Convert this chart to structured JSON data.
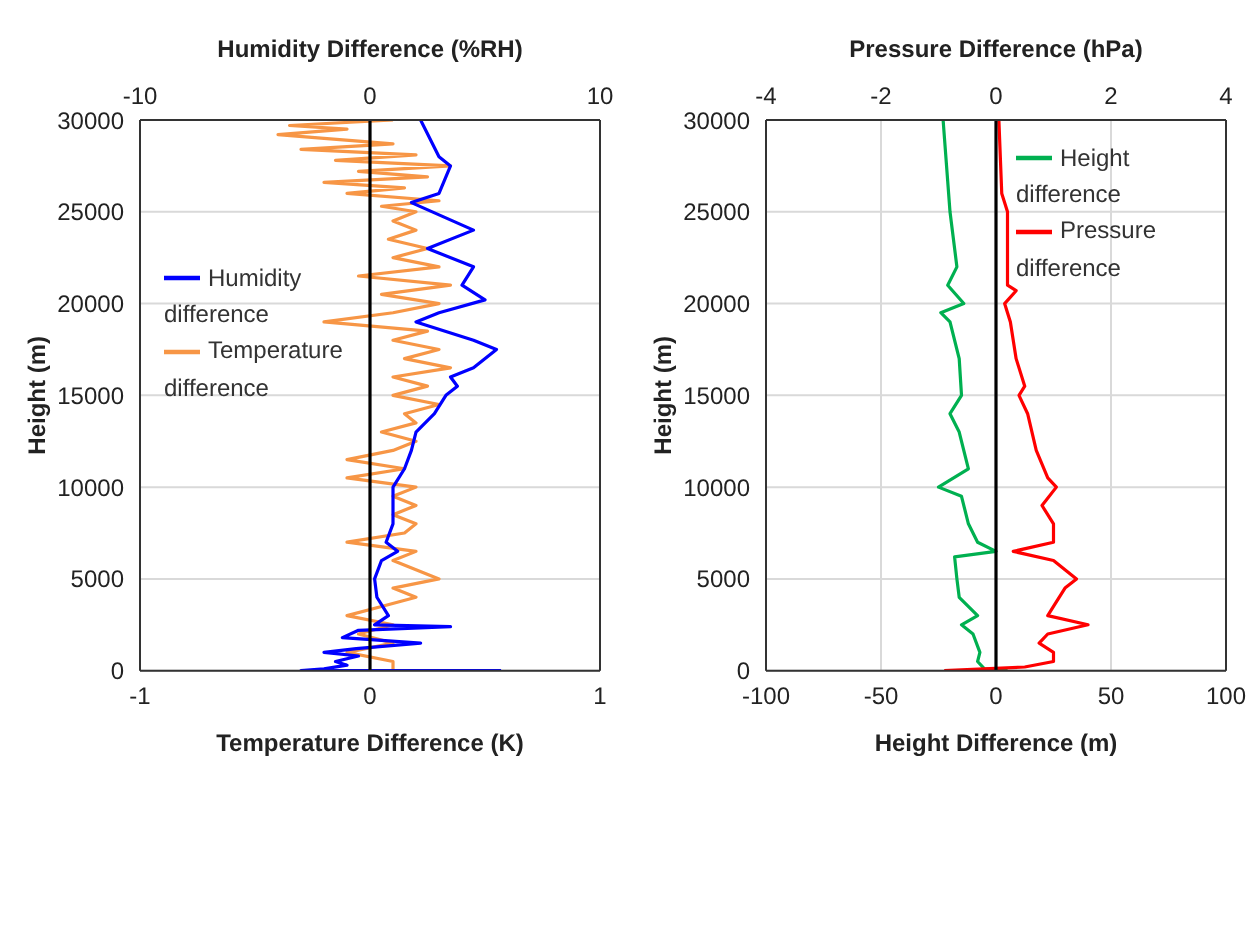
{
  "chart_data": [
    {
      "type": "line",
      "xlabel": "Temperature Difference (K)",
      "x2label": "Humidity Difference (%RH)",
      "ylabel": "Height (m)",
      "xlim": [
        -1,
        1
      ],
      "xticks": [
        -1,
        0,
        1
      ],
      "x2lim": [
        -10,
        10
      ],
      "x2ticks": [
        -10,
        0,
        10
      ],
      "ylim": [
        0,
        30000
      ],
      "yticks": [
        0,
        5000,
        10000,
        15000,
        20000,
        25000,
        30000
      ],
      "grid": true,
      "legend": "left",
      "marker": "none",
      "line_style": "solid",
      "ref_lines": [
        {
          "axis": "x",
          "value": 0,
          "color": "#000000"
        }
      ],
      "series": [
        {
          "name": "Temperature difference",
          "color": "#f79646",
          "x": [
            0.1,
            -0.35,
            -0.1,
            -0.4,
            -0.2,
            0.1,
            -0.3,
            0.2,
            -0.15,
            0.35,
            -0.05,
            0.25,
            -0.2,
            0.15,
            -0.1,
            0.3,
            0.05,
            0.2,
            0.1,
            0.2,
            0.08,
            0.25,
            0.1,
            0.3,
            -0.05,
            0.35,
            0.05,
            0.3,
            0.1,
            -0.2,
            0.25,
            0.1,
            0.3,
            0.15,
            0.35,
            0.1,
            0.25,
            0.1,
            0.3,
            0.15,
            0.2,
            0.05,
            0.2,
            0.1,
            -0.1,
            0.15,
            -0.1,
            0.2,
            0.1,
            0.2,
            0.1,
            0.2,
            0.15,
            -0.1,
            0.2,
            0.1,
            0.2,
            0.3,
            0.1,
            0.2,
            0.05,
            -0.1,
            0.1,
            -0.05,
            0.1,
            -0.1,
            0.1,
            0.1
          ],
          "values": [
            30000,
            29700,
            29500,
            29200,
            29000,
            28700,
            28400,
            28100,
            27800,
            27500,
            27200,
            26900,
            26600,
            26300,
            26000,
            25600,
            25300,
            25000,
            24500,
            24000,
            23500,
            23000,
            22500,
            22000,
            21500,
            21000,
            20500,
            20000,
            19500,
            19000,
            18500,
            18000,
            17500,
            17000,
            16500,
            16000,
            15500,
            15000,
            14500,
            14000,
            13500,
            13000,
            12500,
            12000,
            11500,
            11000,
            10500,
            10000,
            9500,
            9000,
            8500,
            8000,
            7500,
            7000,
            6500,
            6000,
            5500,
            5000,
            4500,
            4000,
            3500,
            3000,
            2500,
            2000,
            1500,
            1000,
            500,
            0
          ]
        },
        {
          "name": "Humidity difference",
          "color": "#0000ff",
          "axis": "x2",
          "x": [
            2.2,
            3,
            3.5,
            3,
            1.8,
            4.5,
            2.5,
            4.5,
            4,
            5,
            3,
            2,
            4.5,
            5.5,
            4.5,
            3.5,
            3.8,
            3.3,
            2.8,
            2,
            1.8,
            1.5,
            1,
            1,
            1,
            0.7,
            1.2,
            0.5,
            0.2,
            0.3,
            0.8,
            0.2,
            3.5,
            -0.5,
            -1.2,
            2.2,
            -0.6,
            -2,
            -0.5,
            -1.5,
            -1,
            -2,
            -3,
            5.7
          ],
          "values": [
            30000,
            28000,
            27500,
            26000,
            25500,
            24000,
            23000,
            22000,
            21000,
            20200,
            19500,
            19000,
            18000,
            17500,
            16500,
            16000,
            15500,
            15000,
            14000,
            13000,
            12000,
            11000,
            10000,
            9000,
            8000,
            7000,
            6500,
            6000,
            5000,
            4000,
            3000,
            2500,
            2400,
            2200,
            1800,
            1500,
            1200,
            1000,
            800,
            500,
            300,
            100,
            0,
            0
          ]
        }
      ]
    },
    {
      "type": "line",
      "xlabel": "Height Difference (m)",
      "x2label": "Pressure Difference (hPa)",
      "ylabel": "Height (m)",
      "xlim": [
        -100,
        100
      ],
      "xticks": [
        -100,
        -50,
        0,
        50,
        100
      ],
      "x2lim": [
        -4,
        4
      ],
      "x2ticks": [
        -4,
        -2,
        0,
        2,
        4
      ],
      "ylim": [
        0,
        30000
      ],
      "yticks": [
        0,
        5000,
        10000,
        15000,
        20000,
        25000,
        30000
      ],
      "grid": true,
      "legend": "top right",
      "marker": "none",
      "line_style": "solid",
      "ref_lines": [
        {
          "axis": "x",
          "value": 0,
          "color": "#000000"
        }
      ],
      "series": [
        {
          "name": "Height difference",
          "color": "#00b050",
          "x": [
            -23,
            -20,
            -17,
            -21,
            -14,
            -24,
            -20,
            -16,
            -15,
            -20,
            -16,
            -12,
            -25,
            -15,
            -12,
            -8,
            0,
            -18,
            -17,
            -16,
            -8,
            -15,
            -10,
            -7,
            -8,
            -5,
            5
          ],
          "values": [
            30000,
            25000,
            22000,
            21000,
            20000,
            19500,
            19000,
            17000,
            15000,
            14000,
            13000,
            11000,
            10000,
            9500,
            8000,
            7000,
            6500,
            6200,
            5000,
            4000,
            3000,
            2500,
            2000,
            1000,
            500,
            100,
            0
          ]
        },
        {
          "name": "Pressure difference",
          "color": "#ff0000",
          "axis": "x2",
          "x": [
            0.05,
            0.1,
            0.2,
            0.2,
            0.35,
            0.15,
            0.25,
            0.35,
            0.5,
            0.4,
            0.55,
            0.7,
            0.9,
            1.05,
            0.8,
            1,
            1,
            0.3,
            1,
            1.4,
            1.2,
            1,
            0.9,
            1.6,
            0.9,
            0.75,
            1,
            1,
            0.5,
            -0.9
          ],
          "values": [
            30000,
            26000,
            25000,
            21000,
            20700,
            20000,
            19000,
            17000,
            15500,
            15000,
            14000,
            12000,
            10500,
            10000,
            9000,
            8000,
            7000,
            6500,
            6000,
            5000,
            4500,
            3500,
            3000,
            2500,
            2000,
            1500,
            1000,
            500,
            200,
            0
          ]
        }
      ]
    }
  ]
}
